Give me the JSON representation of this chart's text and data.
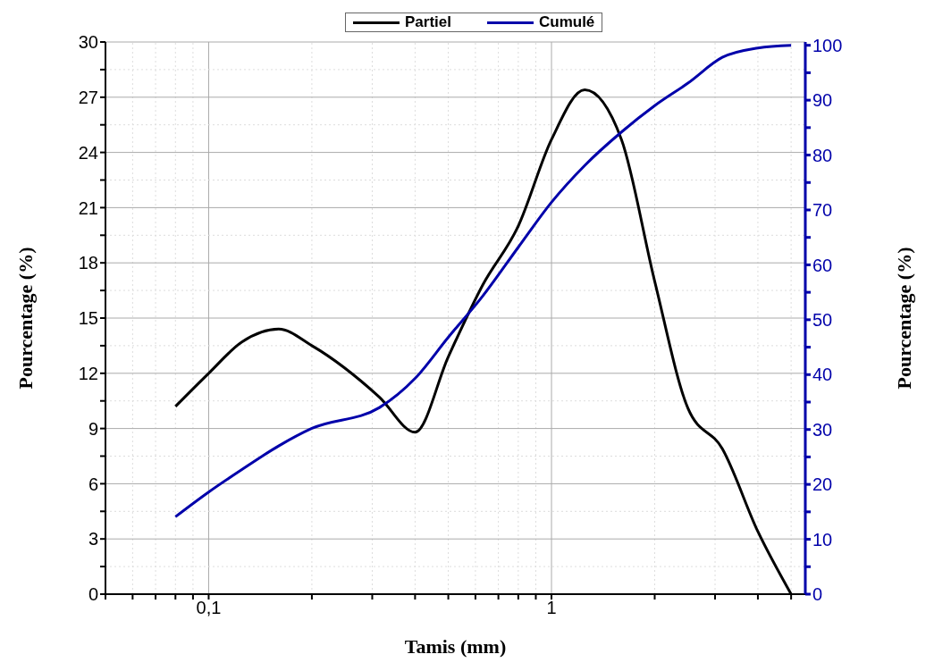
{
  "chart_data": {
    "type": "line",
    "xlabel": "Tamis (mm)",
    "ylabel": "Pourcentage (%)",
    "y2label": "Pourcentage (%)",
    "log": "x",
    "grid": true,
    "legend": "top",
    "marker": "none",
    "line_style": "solid",
    "x": [
      0.08,
      0.1,
      0.125,
      0.16,
      0.2,
      0.315,
      0.4,
      0.5,
      0.63,
      0.8,
      1,
      1.25,
      1.6,
      2,
      2.5,
      3.15,
      4,
      5
    ],
    "series": [
      {
        "name": "Partiel",
        "color": "#000000",
        "values": [
          10.2,
          12.0,
          13.7,
          14.4,
          13.5,
          10.7,
          8.8,
          12.9,
          16.8,
          20,
          24.7,
          27.4,
          24.7,
          17.0,
          10.1,
          7.9,
          3.4,
          0
        ]
      },
      {
        "name": "Cumulé",
        "color": "#0000aa",
        "axis": "y2",
        "values": [
          14.1,
          18.6,
          22.7,
          27,
          30.2,
          34,
          39.3,
          46.8,
          54.3,
          63.2,
          71.4,
          78.1,
          84.2,
          89,
          93.1,
          97.8,
          99.5,
          100
        ]
      }
    ],
    "xlim": [
      0.05,
      5.5
    ],
    "xticks": [
      {
        "value": 0.05,
        "label": null
      },
      {
        "value": 0.06,
        "label": null
      },
      {
        "value": 0.07,
        "label": null
      },
      {
        "value": 0.08,
        "label": null
      },
      {
        "value": 0.09,
        "label": null
      },
      {
        "value": 0.1,
        "label": "0,1"
      },
      {
        "value": 0.2,
        "label": null
      },
      {
        "value": 0.3,
        "label": null
      },
      {
        "value": 0.4,
        "label": null
      },
      {
        "value": 0.5,
        "label": null
      },
      {
        "value": 0.6,
        "label": null
      },
      {
        "value": 0.7,
        "label": null
      },
      {
        "value": 0.8,
        "label": null
      },
      {
        "value": 0.9,
        "label": null
      },
      {
        "value": 1,
        "label": "1"
      },
      {
        "value": 2,
        "label": null
      },
      {
        "value": 3,
        "label": null
      },
      {
        "value": 4,
        "label": null
      },
      {
        "value": 5,
        "label": null
      }
    ],
    "ylim": [
      0,
      30
    ],
    "yticks": [
      0,
      {
        "value": 1.5,
        "label": null
      },
      3,
      {
        "value": 4.5,
        "label": null
      },
      6,
      {
        "value": 7.5,
        "label": null
      },
      9,
      {
        "value": 10.5,
        "label": null
      },
      12,
      {
        "value": 13.5,
        "label": null
      },
      15,
      {
        "value": 16.5,
        "label": null
      },
      18,
      {
        "value": 19.5,
        "label": null
      },
      21,
      {
        "value": 22.5,
        "label": null
      },
      24,
      {
        "value": 25.5,
        "label": null
      },
      27,
      {
        "value": 28.5,
        "label": null
      },
      30
    ],
    "y2lim": [
      0,
      100.6
    ],
    "y2ticks": [
      0,
      {
        "value": 5,
        "label": null
      },
      10,
      {
        "value": 15,
        "label": null
      },
      20,
      {
        "value": 25,
        "label": null
      },
      30,
      {
        "value": 35,
        "label": null
      },
      40,
      {
        "value": 45,
        "label": null
      },
      50,
      {
        "value": 55,
        "label": null
      },
      60,
      {
        "value": 65,
        "label": null
      },
      70,
      {
        "value": 75,
        "label": null
      },
      80,
      {
        "value": 85,
        "label": null
      },
      90,
      {
        "value": 95,
        "label": null
      },
      100
    ]
  }
}
